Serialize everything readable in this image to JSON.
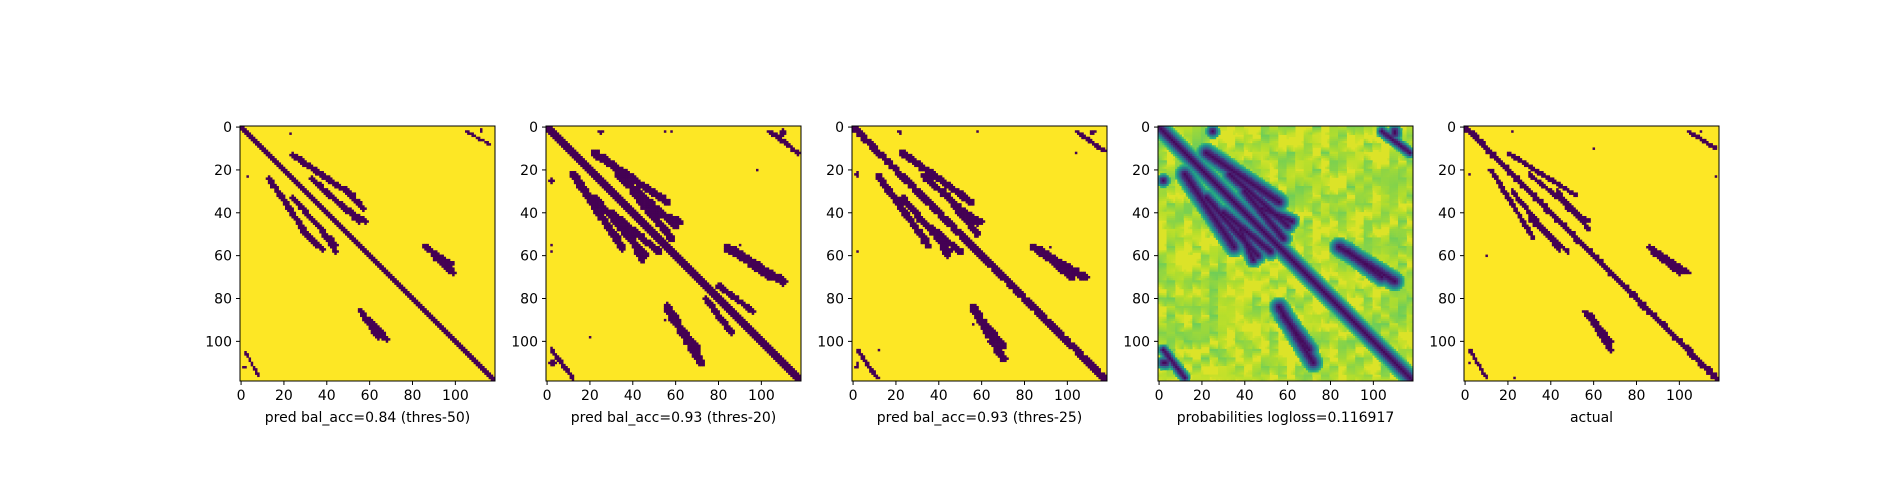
{
  "chart_data": [
    {
      "type": "heatmap",
      "title": "",
      "xlabel": "pred bal_acc=0.84 (thres-50)",
      "ylabel": "",
      "matrix_size": 119,
      "xlim": [
        0,
        119
      ],
      "ylim": [
        119,
        0
      ],
      "x_ticks": [
        "0",
        "20",
        "40",
        "60",
        "80",
        "100"
      ],
      "y_ticks": [
        "0",
        "20",
        "40",
        "60",
        "80",
        "100"
      ],
      "values_kind": "binary",
      "colors": {
        "low": "#440154",
        "high": "#fde725"
      },
      "features": {
        "main_diagonal_halfwidth": 1.2,
        "lines": [
          [
            13,
            32,
            24,
            52,
            1.3
          ],
          [
            24,
            44,
            33,
            55,
            1.2
          ],
          [
            49,
            57,
            29,
            38,
            1.2
          ],
          [
            60,
            68,
            90,
            99,
            1.3
          ],
          [
            46,
            58,
            36,
            44,
            1.1
          ],
          [
            86,
            98,
            56,
            64,
            1.4
          ],
          [
            105,
            116,
            2,
            8,
            0.6
          ]
        ],
        "spots": [
          [
            23,
            3,
            0.7
          ],
          [
            2,
            112,
            0.7
          ],
          [
            112,
            1,
            0.6
          ]
        ]
      }
    },
    {
      "type": "heatmap",
      "title": "",
      "xlabel": "pred bal_acc=0.93 (thres-20)",
      "ylabel": "",
      "matrix_size": 119,
      "xlim": [
        0,
        119
      ],
      "ylim": [
        119,
        0
      ],
      "x_ticks": [
        "0",
        "20",
        "40",
        "60",
        "80",
        "100"
      ],
      "y_ticks": [
        "0",
        "20",
        "40",
        "60",
        "80",
        "100"
      ],
      "values_kind": "binary",
      "colors": {
        "low": "#440154",
        "high": "#fde725"
      },
      "features": {
        "main_diagonal_halfwidth": 1.8,
        "lines": [
          [
            12,
            35,
            22,
            56,
            1.8
          ],
          [
            22,
            46,
            33,
            60,
            1.6
          ],
          [
            40,
            58,
            30,
            52,
            1.7
          ],
          [
            58,
            70,
            88,
            104,
            1.9
          ],
          [
            48,
            62,
            38,
            44,
            1.5
          ],
          [
            84,
            110,
            56,
            72,
            1.9
          ],
          [
            104,
            117,
            2,
            12,
            1.0
          ],
          [
            80,
            96,
            74,
            86,
            1.3
          ]
        ],
        "spots": [
          [
            25,
            2,
            1.2
          ],
          [
            3,
            110,
            1.3
          ],
          [
            110,
            2,
            1.2
          ],
          [
            90,
            55,
            0.6
          ],
          [
            55,
            2,
            0.7
          ],
          [
            58,
            2,
            0.7
          ],
          [
            20,
            98,
            0.7
          ]
        ]
      }
    },
    {
      "type": "heatmap",
      "title": "",
      "xlabel": "pred bal_acc=0.93 (thres-25)",
      "ylabel": "",
      "matrix_size": 119,
      "xlim": [
        0,
        119
      ],
      "ylim": [
        119,
        0
      ],
      "x_ticks": [
        "0",
        "20",
        "40",
        "60",
        "80",
        "100"
      ],
      "y_ticks": [
        "0",
        "20",
        "40",
        "60",
        "80",
        "100"
      ],
      "values_kind": "binary",
      "colors": {
        "low": "#440154",
        "high": "#fde725"
      },
      "features": {
        "main_diagonal_halfwidth": 1.6,
        "lines": [
          [
            12,
            35,
            23,
            55,
            1.6
          ],
          [
            23,
            45,
            33,
            58,
            1.4
          ],
          [
            42,
            58,
            30,
            50,
            1.5
          ],
          [
            58,
            70,
            88,
            102,
            1.7
          ],
          [
            48,
            60,
            38,
            44,
            1.3
          ],
          [
            84,
            108,
            56,
            70,
            1.8
          ],
          [
            104,
            117,
            2,
            11,
            0.9
          ]
        ],
        "spots": [
          [
            22,
            2,
            1.0
          ],
          [
            2,
            112,
            1.1
          ],
          [
            111,
            2,
            1.0
          ],
          [
            92,
            56,
            0.5
          ],
          [
            58,
            2,
            0.6
          ],
          [
            12,
            104,
            0.6
          ]
        ]
      }
    },
    {
      "type": "heatmap",
      "title": "",
      "xlabel": "probabilities logloss=0.116917",
      "ylabel": "",
      "matrix_size": 119,
      "xlim": [
        0,
        119
      ],
      "ylim": [
        119,
        0
      ],
      "x_ticks": [
        "0",
        "20",
        "40",
        "60",
        "80",
        "100"
      ],
      "y_ticks": [
        "0",
        "20",
        "40",
        "60",
        "80",
        "100"
      ],
      "values_kind": "probability",
      "colormap": "viridis",
      "features": {
        "main_diagonal_halfwidth": 1.8,
        "lines": [
          [
            12,
            35,
            22,
            56,
            2.0
          ],
          [
            22,
            46,
            33,
            60,
            1.8
          ],
          [
            40,
            58,
            30,
            52,
            1.8
          ],
          [
            58,
            70,
            88,
            104,
            2.0
          ],
          [
            48,
            62,
            38,
            44,
            1.6
          ],
          [
            84,
            110,
            56,
            72,
            2.0
          ],
          [
            104,
            117,
            2,
            12,
            1.2
          ]
        ],
        "spots": [
          [
            25,
            2,
            1.5
          ],
          [
            3,
            110,
            1.6
          ],
          [
            110,
            2,
            1.5
          ]
        ]
      }
    },
    {
      "type": "heatmap",
      "title": "",
      "xlabel": "actual",
      "ylabel": "",
      "matrix_size": 119,
      "xlim": [
        0,
        119
      ],
      "ylim": [
        119,
        0
      ],
      "x_ticks": [
        "0",
        "20",
        "40",
        "60",
        "80",
        "100"
      ],
      "y_ticks": [
        "0",
        "20",
        "40",
        "60",
        "80",
        "100"
      ],
      "values_kind": "binary",
      "colors": {
        "low": "#440154",
        "high": "#fde725"
      },
      "features": {
        "main_diagonal_halfwidth": 1.3,
        "lines": [
          [
            12,
            32,
            20,
            52,
            1.0
          ],
          [
            22,
            44,
            30,
            57,
            1.0
          ],
          [
            43,
            58,
            30,
            48,
            1.0
          ],
          [
            58,
            68,
            87,
            100,
            1.1
          ],
          [
            48,
            58,
            38,
            44,
            0.9
          ],
          [
            86,
            104,
            56,
            68,
            1.1
          ],
          [
            104,
            117,
            2,
            10,
            0.8
          ]
        ],
        "spots": [
          [
            22,
            2,
            0.8
          ],
          [
            2,
            110,
            0.8
          ],
          [
            23,
            117,
            0.8
          ],
          [
            110,
            2,
            0.8
          ],
          [
            60,
            10,
            0.6
          ]
        ]
      }
    }
  ]
}
